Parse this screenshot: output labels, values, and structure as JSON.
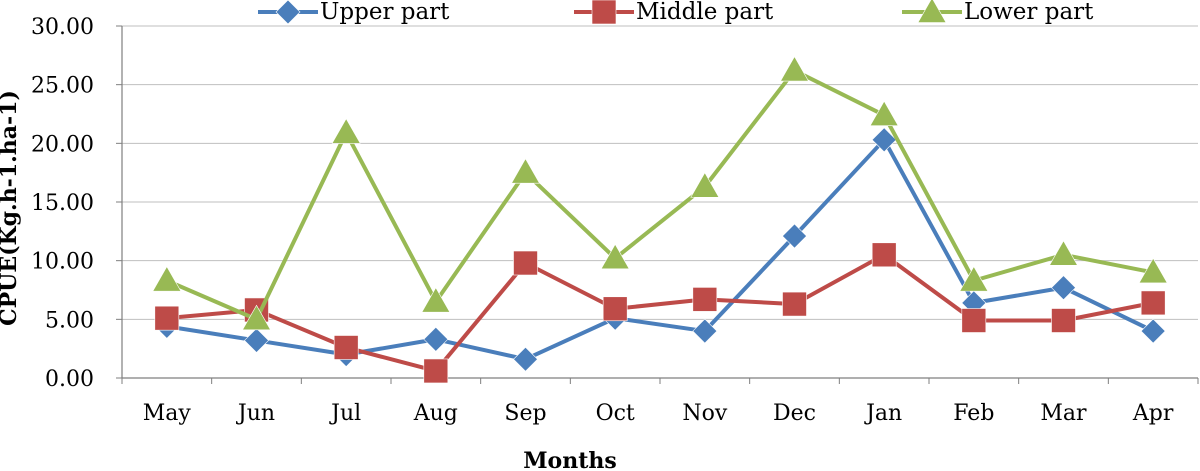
{
  "chart_data": {
    "type": "line",
    "categories": [
      "May",
      "Jun",
      "Jul",
      "Aug",
      "Sep",
      "Oct",
      "Nov",
      "Dec",
      "Jan",
      "Feb",
      "Mar",
      "Apr"
    ],
    "series": [
      {
        "name": "Upper part",
        "color": "#4a7ebb",
        "marker": "diamond",
        "values": [
          4.4,
          3.2,
          2.0,
          3.3,
          1.6,
          5.1,
          4.0,
          12.1,
          20.3,
          6.4,
          7.7,
          4.0
        ]
      },
      {
        "name": "Middle part",
        "color": "#be4b48",
        "marker": "square",
        "values": [
          5.1,
          5.8,
          2.6,
          0.6,
          9.8,
          5.9,
          6.7,
          6.3,
          10.5,
          4.9,
          4.9,
          6.4
        ]
      },
      {
        "name": "Lower part",
        "color": "#98b954",
        "marker": "triangle",
        "values": [
          8.3,
          5.0,
          20.9,
          6.5,
          17.5,
          10.2,
          16.3,
          26.2,
          22.4,
          8.3,
          10.5,
          9.0
        ]
      }
    ],
    "xlabel": "Months",
    "ylabel": "CPUE(Kg.h-1.ha-1)",
    "ylim": [
      0,
      30
    ],
    "yticks": [
      "0.00",
      "5.00",
      "10.00",
      "15.00",
      "20.00",
      "25.00",
      "30.00"
    ],
    "grid": true,
    "legend_position": "top"
  }
}
